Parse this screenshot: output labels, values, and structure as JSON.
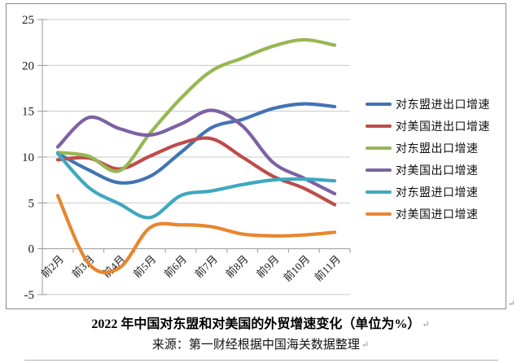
{
  "chart_data": {
    "type": "line",
    "smooth": true,
    "title": "2022 年中国对东盟和对美国的外贸增速变化（单位为%）",
    "source": "来源：第一财经根据中国海关数据整理",
    "categories": [
      "前2月",
      "前3月",
      "前4月",
      "前5月",
      "前6月",
      "前7月",
      "前8月",
      "前9月",
      "前10月",
      "前11月"
    ],
    "series": [
      {
        "name": "对东盟进出口增速",
        "color": "#4274B4",
        "values": [
          10.4,
          8.6,
          7.2,
          7.9,
          10.5,
          13.2,
          14.1,
          15.3,
          15.8,
          15.5
        ]
      },
      {
        "name": "对美国进出口增速",
        "color": "#BE4C49",
        "values": [
          9.7,
          9.9,
          8.7,
          10.1,
          11.5,
          12.0,
          10.0,
          7.9,
          6.6,
          4.8
        ]
      },
      {
        "name": "对东盟出口增速",
        "color": "#96B754",
        "values": [
          10.5,
          10.1,
          8.5,
          12.6,
          16.4,
          19.4,
          20.8,
          22.1,
          22.8,
          22.2
        ]
      },
      {
        "name": "对美国出口增速",
        "color": "#7C61A3",
        "values": [
          11.1,
          14.3,
          13.1,
          12.4,
          13.6,
          15.1,
          13.4,
          9.4,
          7.7,
          6.0
        ]
      },
      {
        "name": "对东盟进口增速",
        "color": "#3FA8BF",
        "values": [
          10.4,
          6.7,
          4.9,
          3.4,
          5.8,
          6.3,
          7.0,
          7.5,
          7.6,
          7.4
        ]
      },
      {
        "name": "对美国进口增速",
        "color": "#E8862F",
        "values": [
          5.8,
          -1.6,
          -2.1,
          2.3,
          2.6,
          2.4,
          1.6,
          1.4,
          1.5,
          1.8
        ]
      }
    ],
    "ylim": [
      -5,
      25
    ],
    "yticks": [
      -5,
      0,
      5,
      10,
      15,
      20,
      25
    ],
    "grid": "horizontal",
    "legend_position": "right",
    "unit": "%"
  },
  "marks": {
    "return_mark": "↵"
  },
  "colors": {
    "grid": "#c8c8c8",
    "axis": "#9a9a9a",
    "frame": "#8a8a8a",
    "label_text": "#1a1a1a",
    "background": "#ffffff"
  }
}
